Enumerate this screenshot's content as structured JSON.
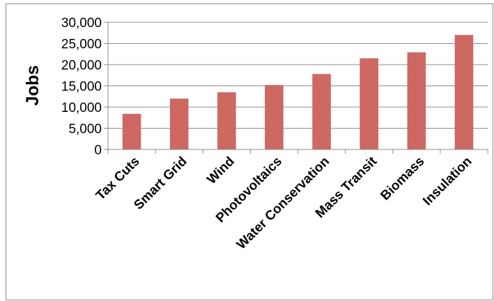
{
  "chart_data": {
    "type": "bar",
    "title": "",
    "xlabel": "",
    "ylabel": "Jobs",
    "categories": [
      "Tax Cuts",
      "Smart Grid",
      "Wind",
      "Photovoltaics",
      "Water Conservation",
      "Mass Transit",
      "Biomass",
      "Insulation"
    ],
    "values": [
      8400,
      12000,
      13500,
      15200,
      17800,
      21500,
      22900,
      27000
    ],
    "ylim": [
      0,
      30000
    ],
    "yticks": [
      0,
      5000,
      10000,
      15000,
      20000,
      25000,
      30000
    ],
    "ytick_labels": [
      "0",
      "5,000",
      "10,000",
      "15,000",
      "20,000",
      "25,000",
      "30,000"
    ],
    "grid": true,
    "legend": "none",
    "colors": {
      "bar": "#cd6863",
      "grid": "#8c8c8c",
      "axis": "#8c8c8c",
      "border": "#8c8c8c"
    }
  }
}
